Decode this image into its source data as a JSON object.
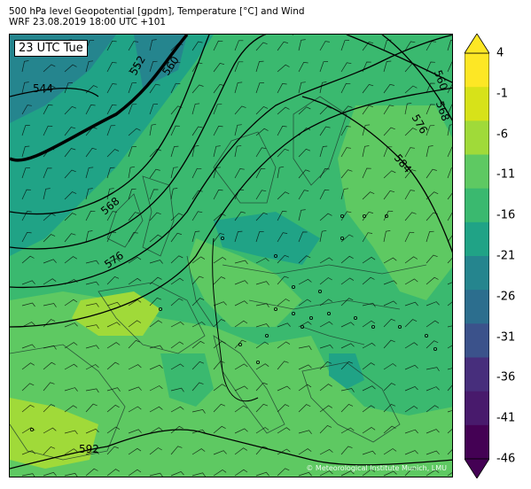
{
  "title": {
    "line1": "500 hPa level Geopotential [gpdm], Temperature [°C] and Wind",
    "line2": "WRF 23.08.2019 18:00 UTC +101"
  },
  "valid_time": "23 UTC Tue",
  "credit": "© Meteorological Institute Munich, LMU",
  "contour_labels": [
    "544",
    "552",
    "560",
    "568",
    "576",
    "584",
    "592",
    "560",
    "568",
    "576"
  ],
  "colorbar": {
    "ticks": [
      "4",
      "-1",
      "-6",
      "-11",
      "-16",
      "-21",
      "-26",
      "-31",
      "-36",
      "-41",
      "-46"
    ],
    "colors_top_to_bottom": [
      "#fde725",
      "#d7e219",
      "#a0da39",
      "#5ec962",
      "#3ab96f",
      "#20a386",
      "#25858e",
      "#2c6e8e",
      "#3b528b",
      "#472e7c",
      "#481a6c",
      "#440154"
    ]
  },
  "colors": {
    "warm": "#5ec962",
    "mid": "#3ab96f",
    "cool": "#20a386",
    "warmest": "#a0da39"
  }
}
